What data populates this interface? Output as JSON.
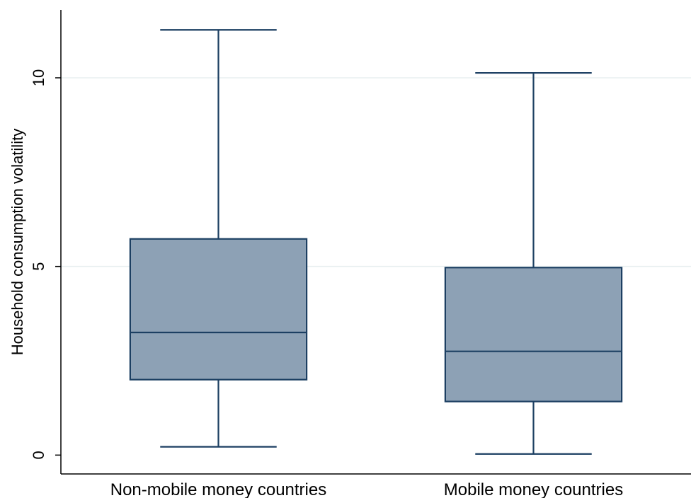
{
  "chart_data": {
    "type": "boxplot",
    "title": "",
    "xlabel": "",
    "ylabel": "Household consumption volatility",
    "ylim": [
      -0.5,
      11.8
    ],
    "yticks": [
      0,
      5,
      10
    ],
    "grid": true,
    "legend": "none",
    "categories": [
      "Non-mobile money countries",
      "Mobile money countries"
    ],
    "boxes": [
      {
        "whisker_low": 0.22,
        "q1": 2.0,
        "median": 3.25,
        "q3": 5.73,
        "whisker_high": 11.27
      },
      {
        "whisker_low": 0.03,
        "q1": 1.42,
        "median": 2.75,
        "q3": 4.97,
        "whisker_high": 10.13
      }
    ],
    "colors": {
      "box_fill": "#8DA1B5",
      "box_stroke": "#1C3F62",
      "grid": "#E8EFF0",
      "axis": "#000000"
    }
  }
}
